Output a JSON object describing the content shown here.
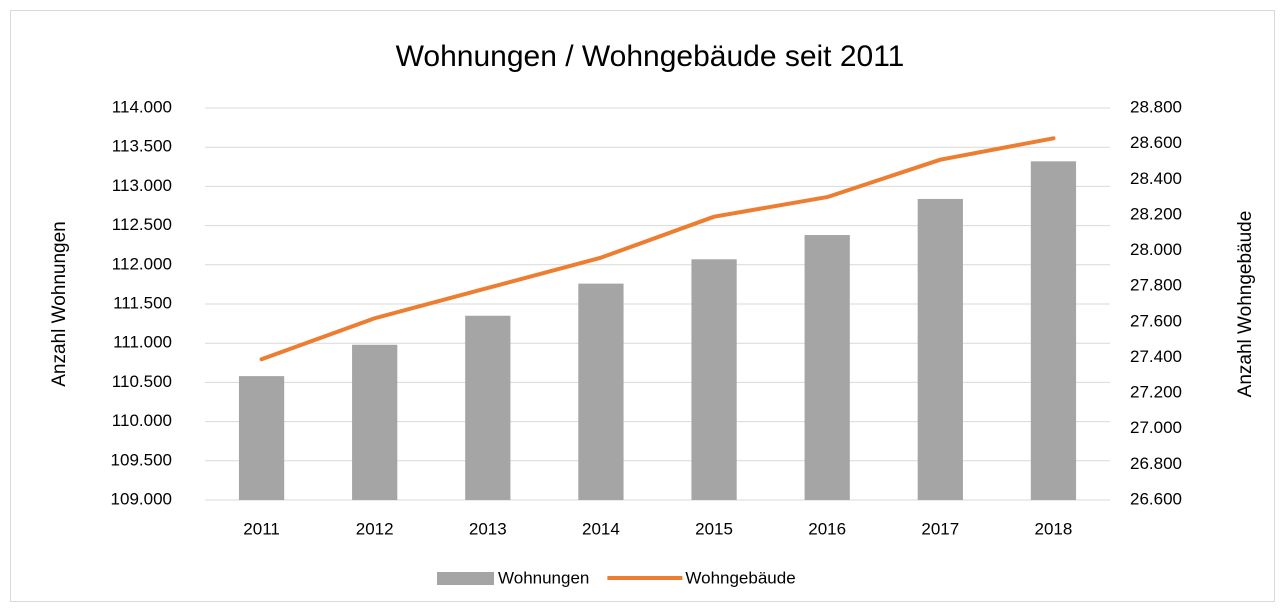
{
  "chart_data": {
    "type": "bar",
    "title": "Wohnungen / Wohngebäude seit 2011",
    "y_label": "Anzahl Wohnungen",
    "y2_label": "Anzahl Wohngebäude",
    "categories": [
      "2011",
      "2012",
      "2013",
      "2014",
      "2015",
      "2016",
      "2017",
      "2018"
    ],
    "series": [
      {
        "name": "Wohnungen",
        "type": "bar",
        "color": "#a5a5a5",
        "values": [
          110580,
          110980,
          111350,
          111760,
          112070,
          112380,
          112840,
          113320
        ]
      },
      {
        "name": "Wohngebäude",
        "type": "line",
        "color": "#ed7d31",
        "axis": "y2",
        "values": [
          27390,
          27620,
          27790,
          27960,
          28190,
          28300,
          28510,
          28630
        ]
      }
    ],
    "ylim": [
      109000,
      114000
    ],
    "yticks": [
      {
        "value": 109000,
        "label": "109.000"
      },
      {
        "value": 109500,
        "label": "109.500"
      },
      {
        "value": 110000,
        "label": "110.000"
      },
      {
        "value": 110500,
        "label": "110.500"
      },
      {
        "value": 111000,
        "label": "111.000"
      },
      {
        "value": 111500,
        "label": "111.500"
      },
      {
        "value": 112000,
        "label": "112.000"
      },
      {
        "value": 112500,
        "label": "112.500"
      },
      {
        "value": 113000,
        "label": "113.000"
      },
      {
        "value": 113500,
        "label": "113.500"
      },
      {
        "value": 114000,
        "label": "114.000"
      }
    ],
    "y2lim": [
      26600,
      28800
    ],
    "y2ticks": [
      {
        "value": 26600,
        "label": "26.600"
      },
      {
        "value": 26800,
        "label": "26.800"
      },
      {
        "value": 27000,
        "label": "27.000"
      },
      {
        "value": 27200,
        "label": "27.200"
      },
      {
        "value": 27400,
        "label": "27.400"
      },
      {
        "value": 27600,
        "label": "27.600"
      },
      {
        "value": 27800,
        "label": "27.800"
      },
      {
        "value": 28000,
        "label": "28.000"
      },
      {
        "value": 28200,
        "label": "28.200"
      },
      {
        "value": 28400,
        "label": "28.400"
      },
      {
        "value": 28600,
        "label": "28.600"
      },
      {
        "value": 28800,
        "label": "28.800"
      }
    ],
    "grid": true,
    "legend": "bottom"
  }
}
